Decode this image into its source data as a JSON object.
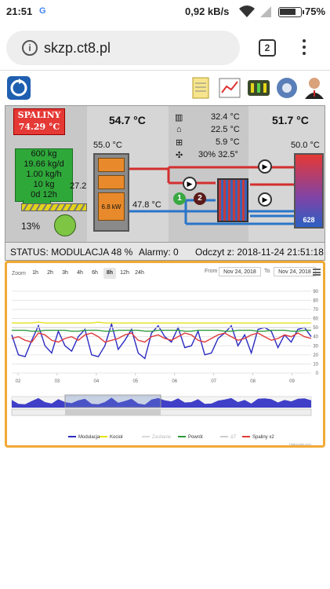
{
  "statusbar": {
    "time": "21:51",
    "notification_icon": "G",
    "speed": "0,92 kB/s",
    "battery": "75%"
  },
  "browser": {
    "url": "skzp.ct8.pl",
    "tab_count": "2"
  },
  "toolbar": {
    "icons": [
      "refresh-logo-icon",
      "notes-icon",
      "chart-icon",
      "control-panel-icon",
      "settings-gear-icon",
      "user-icon"
    ]
  },
  "plant": {
    "spaliny_label": "SPALINY",
    "spaliny_temp": "74.29 °C",
    "boiler_temp": "54.7 °C",
    "boiler_small_temp": "55.0 °C",
    "radiator_temp": "32.4 °C",
    "house_temp": "22.5 °C",
    "window_temp": "5.9 °C",
    "fan_values": "30% 32.5°",
    "tank_top_temp": "51.7 °C",
    "tank_temp": "50.0 °C",
    "hopper_lines": [
      "600 kg",
      "19.66 kg/d",
      "1.00 kg/h",
      "10 kg",
      "0d 12h"
    ],
    "auger_value": "27.2",
    "motor_percent": "13%",
    "power": "6.8 kW",
    "return_temp": "47.8 °C",
    "tank_value": "628",
    "pump1": "1",
    "pump2": "2"
  },
  "status": {
    "status_text": "STATUS: MODULACJA 48 %",
    "alarms": "Alarmy: 0",
    "read_time": "Odczyt z: 2018-11-24 21:51:18"
  },
  "chart_controls": {
    "zoom_label": "Zoom",
    "zoom_buttons": [
      "1h",
      "2h",
      "3h",
      "4h",
      "6h",
      "8h",
      "12h",
      "24h"
    ],
    "active_zoom": "8h",
    "from_label": "From",
    "from_date": "Nov 24, 2018",
    "to_label": "To",
    "to_date": "Nov 24, 2018",
    "credit": "Highcharts.com"
  },
  "chart_data": {
    "type": "line",
    "x_ticks": [
      "02",
      "03",
      "04",
      "05",
      "06",
      "07",
      "08",
      "09"
    ],
    "y_ticks": [
      0,
      10,
      20,
      30,
      40,
      50,
      60,
      70,
      80,
      90
    ],
    "ylim": [
      0,
      95
    ],
    "series": [
      {
        "name": "Modulacja",
        "color": "#2b2bc2",
        "values": [
          42,
          20,
          18,
          36,
          52,
          30,
          22,
          46,
          30,
          24,
          40,
          48,
          20,
          18,
          30,
          54,
          26,
          36,
          48,
          22,
          16,
          44,
          52,
          40,
          34,
          50,
          28,
          30,
          46,
          20,
          22,
          38,
          44,
          52,
          30,
          42,
          22,
          48,
          50,
          46,
          28,
          42,
          34,
          48,
          50,
          40
        ]
      },
      {
        "name": "Kocioł",
        "color": "#e6e11a",
        "values": [
          55,
          55,
          55,
          55,
          56,
          55,
          55,
          55,
          55,
          55,
          55,
          55,
          55,
          56,
          55,
          55,
          55,
          55,
          55,
          55,
          55,
          55,
          55,
          55,
          55,
          55,
          55,
          55,
          55,
          55,
          55,
          55,
          55,
          55,
          55,
          55,
          55,
          55,
          55,
          55,
          55,
          55,
          55,
          55,
          55,
          55
        ]
      },
      {
        "name": "Zasilanie",
        "color": "#d9d9d9",
        "values": [
          50,
          50,
          50,
          50,
          50,
          50,
          50,
          50,
          50,
          50,
          50,
          50,
          50,
          50,
          50,
          50,
          50,
          50,
          50,
          50,
          50,
          50,
          50,
          50,
          50,
          50,
          50,
          50,
          50,
          50,
          50,
          50,
          50,
          50,
          50,
          50,
          50,
          50,
          50,
          50,
          50,
          50,
          50,
          50,
          50,
          50
        ]
      },
      {
        "name": "Powrót",
        "color": "#2e9a3c",
        "values": [
          47,
          47,
          47,
          46,
          46,
          47,
          47,
          47,
          47,
          46,
          46,
          47,
          47,
          47,
          46,
          46,
          47,
          47,
          47,
          47,
          46,
          46,
          47,
          47,
          47,
          47,
          46,
          46,
          47,
          47,
          47,
          47,
          46,
          46,
          47,
          47,
          47,
          46,
          46,
          47,
          47,
          47,
          46,
          46,
          47,
          47
        ]
      },
      {
        "name": "ΔT",
        "color": "#cccccc",
        "values": []
      },
      {
        "name": "Spaliny x2",
        "color": "#e03a3a",
        "values": [
          38,
          40,
          36,
          34,
          44,
          42,
          36,
          34,
          38,
          40,
          36,
          42,
          44,
          40,
          34,
          36,
          38,
          42,
          44,
          36,
          34,
          40,
          42,
          38,
          36,
          40,
          44,
          42,
          36,
          34,
          38,
          42,
          44,
          40,
          36,
          38,
          42,
          44,
          40,
          36,
          38,
          42,
          40,
          44,
          40,
          38
        ]
      }
    ]
  }
}
